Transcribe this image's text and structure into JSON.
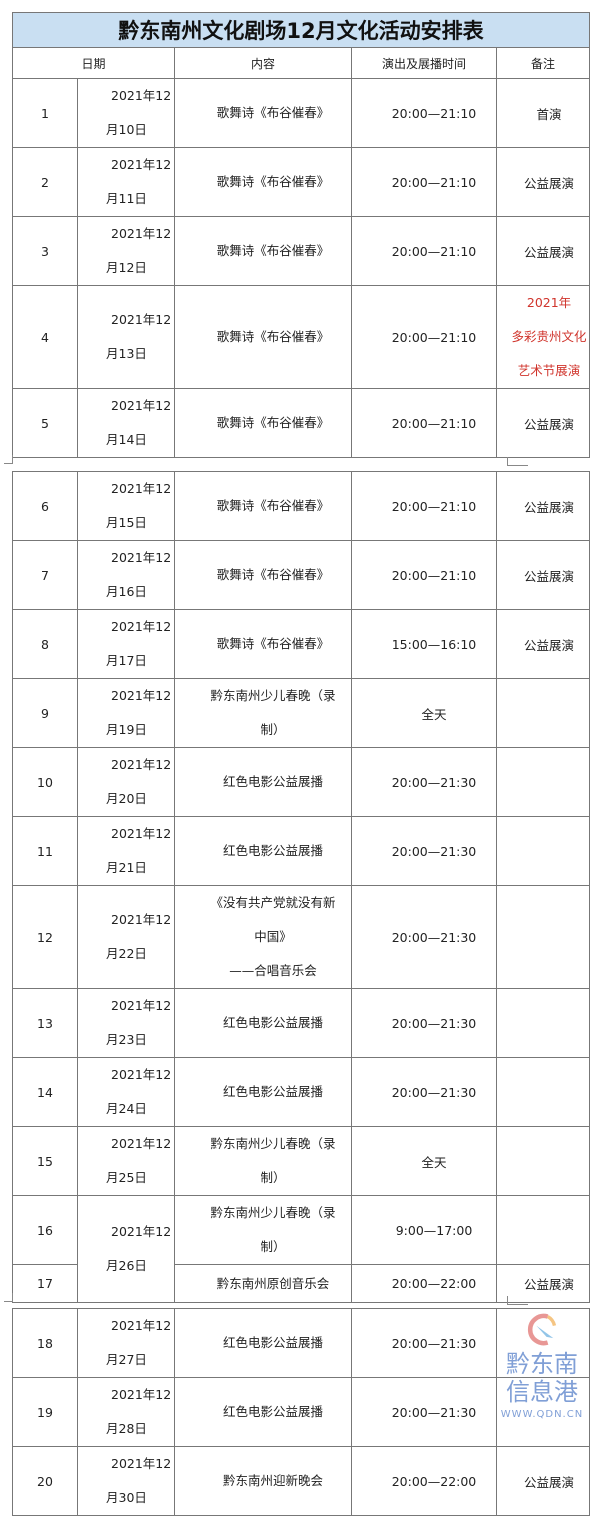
{
  "title": "黔东南州文化剧场12月文化活动安排表",
  "headers": {
    "date": "日期",
    "content": "内容",
    "time": "演出及展播时间",
    "note": "备注"
  },
  "rows": [
    {
      "no": "1",
      "date1": "2021年12",
      "date2": "月10日",
      "content": "歌舞诗《布谷催春》",
      "time": "20:00—21:10",
      "note": "首演"
    },
    {
      "no": "2",
      "date1": "2021年12",
      "date2": "月11日",
      "content": "歌舞诗《布谷催春》",
      "time": "20:00—21:10",
      "note": "公益展演"
    },
    {
      "no": "3",
      "date1": "2021年12",
      "date2": "月12日",
      "content": "歌舞诗《布谷催春》",
      "time": "20:00—21:10",
      "note": "公益展演"
    },
    {
      "no": "4",
      "date1": "2021年12",
      "date2": "月13日",
      "content": "歌舞诗《布谷催春》",
      "time": "20:00—21:10",
      "note": "2021年\n多彩贵州文化\n艺术节展演",
      "note_color": "#d0342c"
    },
    {
      "no": "5",
      "date1": "2021年12",
      "date2": "月14日",
      "content": "歌舞诗《布谷催春》",
      "time": "20:00—21:10",
      "note": "公益展演"
    },
    {
      "no": "6",
      "date1": "2021年12",
      "date2": "月15日",
      "content": "歌舞诗《布谷催春》",
      "time": "20:00—21:10",
      "note": "公益展演"
    },
    {
      "no": "7",
      "date1": "2021年12",
      "date2": "月16日",
      "content": "歌舞诗《布谷催春》",
      "time": "20:00—21:10",
      "note": "公益展演"
    },
    {
      "no": "8",
      "date1": "2021年12",
      "date2": "月17日",
      "content": "歌舞诗《布谷催春》",
      "time": "15:00—16:10",
      "note": "公益展演"
    },
    {
      "no": "9",
      "date1": "2021年12",
      "date2": "月19日",
      "content": "黔东南州少儿春晚（录\n制）",
      "time": "全天",
      "note": ""
    },
    {
      "no": "10",
      "date1": "2021年12",
      "date2": "月20日",
      "content": "红色电影公益展播",
      "time": "20:00—21:30",
      "note": ""
    },
    {
      "no": "11",
      "date1": "2021年12",
      "date2": "月21日",
      "content": "红色电影公益展播",
      "time": "20:00—21:30",
      "note": ""
    },
    {
      "no": "12",
      "date1": "2021年12",
      "date2": "月22日",
      "content": "《没有共产党就没有新\n中国》\n——合唱音乐会",
      "time": "20:00—21:30",
      "note": ""
    },
    {
      "no": "13",
      "date1": "2021年12",
      "date2": "月23日",
      "content": "红色电影公益展播",
      "time": "20:00—21:30",
      "note": ""
    },
    {
      "no": "14",
      "date1": "2021年12",
      "date2": "月24日",
      "content": "红色电影公益展播",
      "time": "20:00—21:30",
      "note": ""
    },
    {
      "no": "15",
      "date1": "2021年12",
      "date2": "月25日",
      "content": "黔东南州少儿春晚（录\n制）",
      "time": "全天",
      "note": ""
    },
    {
      "no": "16",
      "date1": "2021年12",
      "date2": "月26日",
      "content": "黔东南州少儿春晚（录\n制）",
      "time": "9:00—17:00",
      "note": ""
    },
    {
      "no": "17",
      "content": "黔东南州原创音乐会",
      "time": "20:00—22:00",
      "note": "公益展演"
    },
    {
      "no": "18",
      "date1": "2021年12",
      "date2": "月27日",
      "content": "红色电影公益展播",
      "time": "20:00—21:30",
      "note": ""
    },
    {
      "no": "19",
      "date1": "2021年12",
      "date2": "月28日",
      "content": "红色电影公益展播",
      "time": "20:00—21:30",
      "note": ""
    },
    {
      "no": "20",
      "date1": "2021年12",
      "date2": "月30日",
      "content": "黔东南州迎新晚会",
      "time": "20:00—22:00",
      "note": "公益展演"
    }
  ],
  "watermark": {
    "text": "黔东南信息港",
    "url": "WWW.QDN.CN"
  }
}
